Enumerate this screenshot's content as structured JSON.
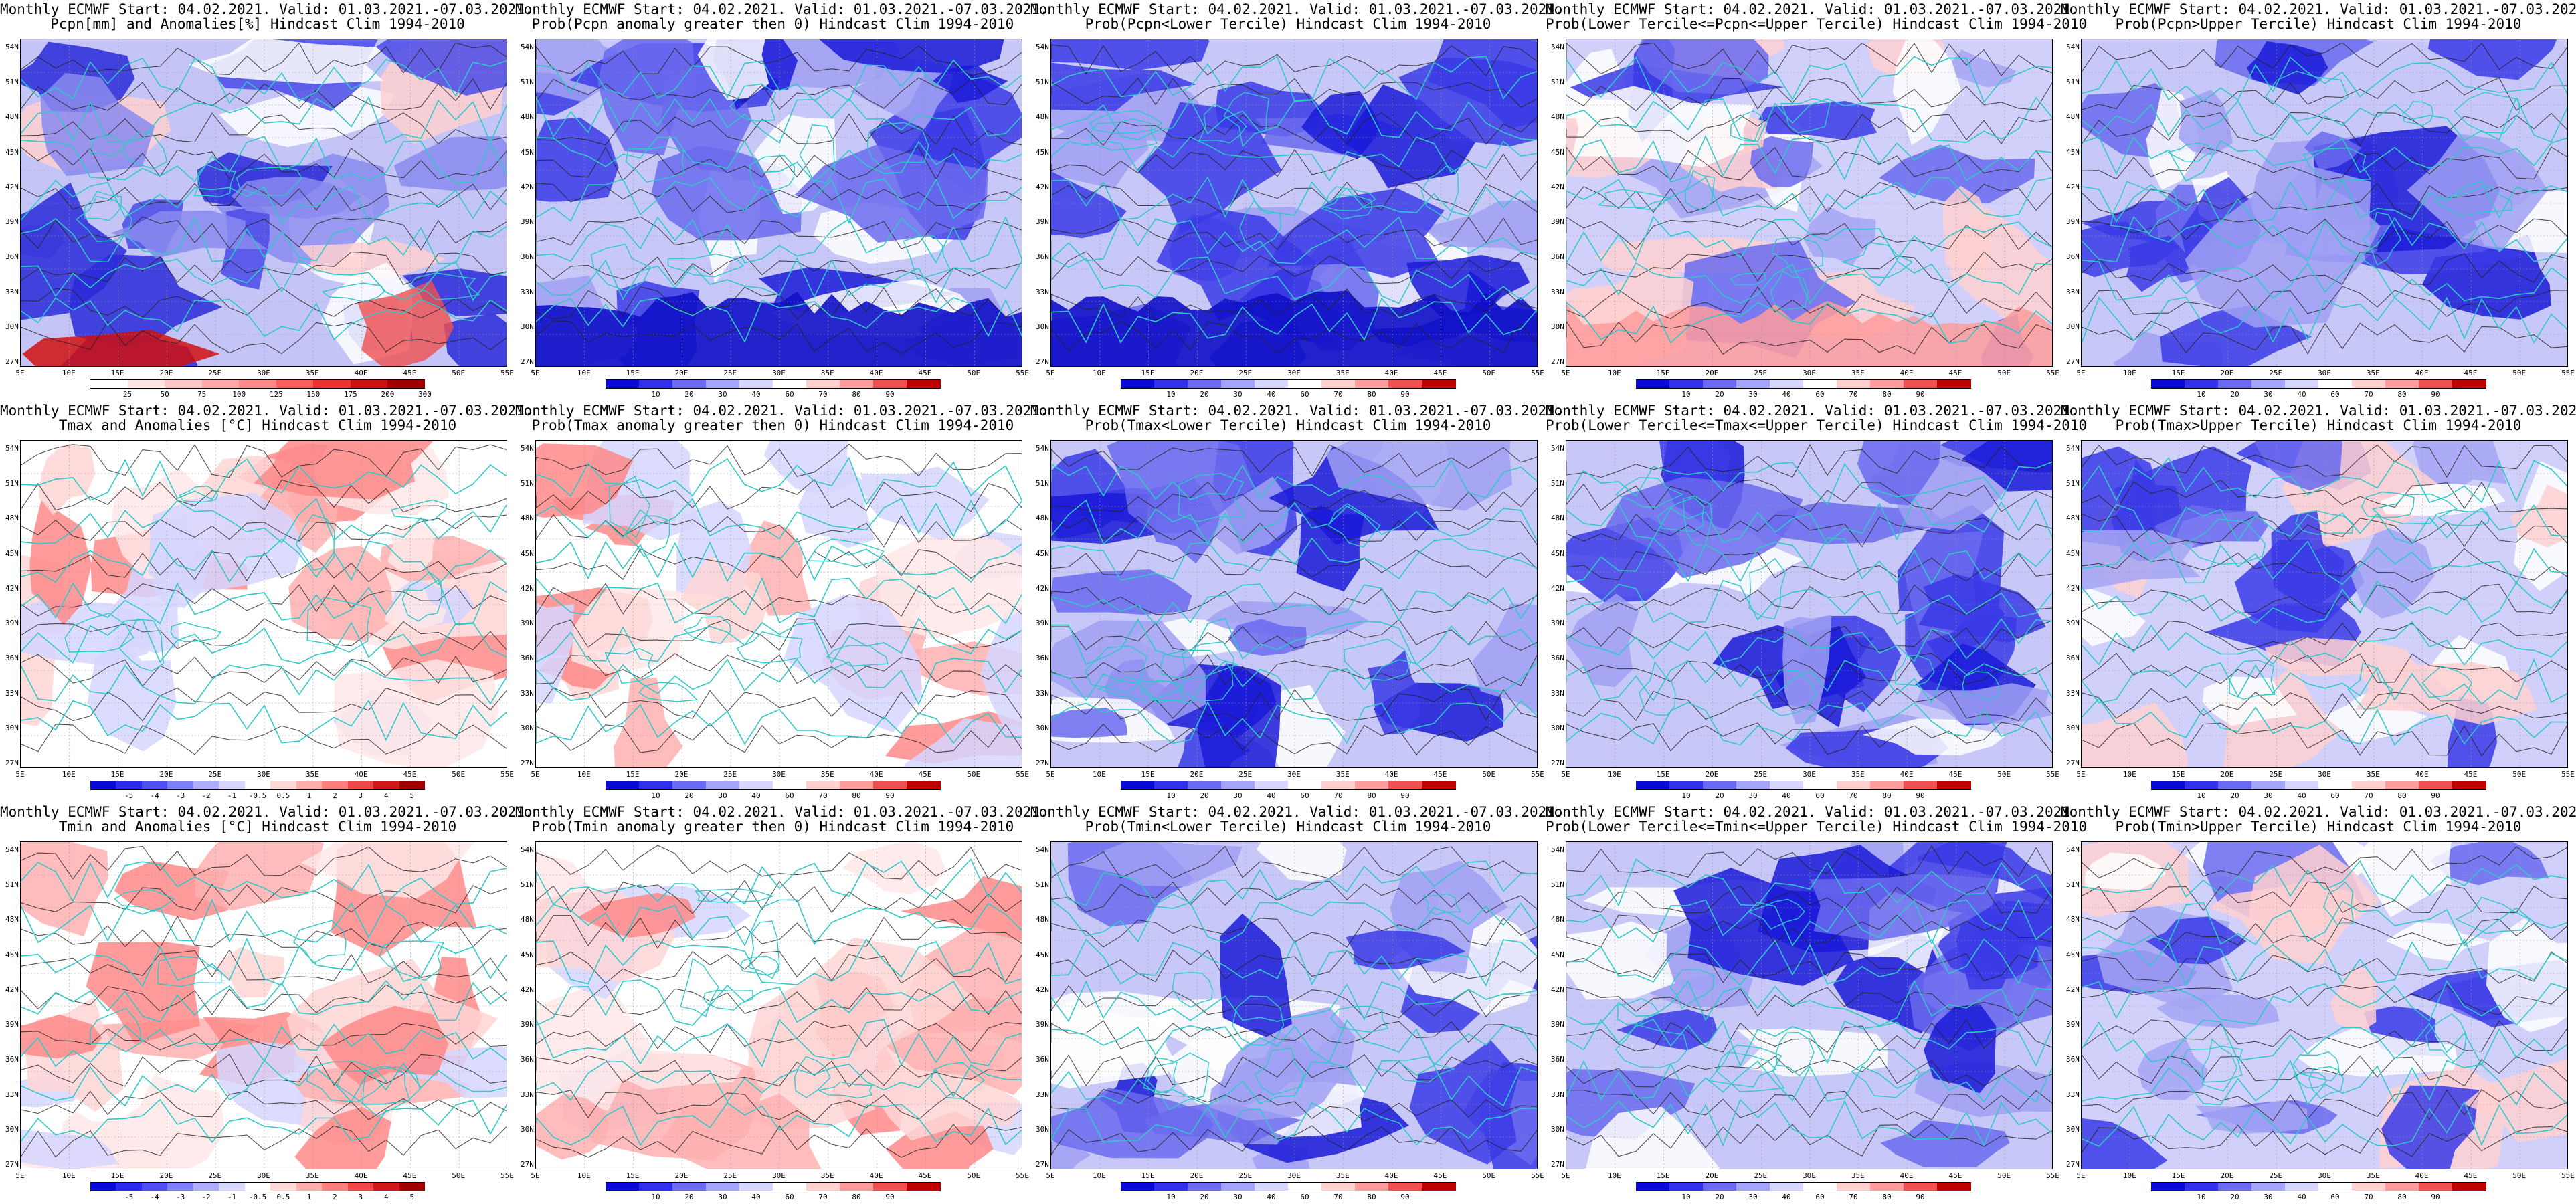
{
  "panels": [
    {
      "title1": "Monthly ECMWF Start: 04.02.2021. Valid: 01.03.2021.-07.03.2021.",
      "title2": "Pcpn[mm] and Anomalies[%] Hindcast Clim 1994-2010",
      "colorbar": "pcpn",
      "pattern": "pcpn"
    },
    {
      "title1": "Monthly ECMWF Start: 04.02.2021. Valid: 01.03.2021.-07.03.2021.",
      "title2": "Prob(Pcpn anomaly greater then 0) Hindcast Clim 1994-2010",
      "colorbar": "prob",
      "pattern": "probblue"
    },
    {
      "title1": "Monthly ECMWF Start: 04.02.2021. Valid: 01.03.2021.-07.03.2021.",
      "title2": "Prob(Pcpn<Lower Tercile) Hindcast Clim 1994-2010",
      "colorbar": "prob",
      "pattern": "probblue"
    },
    {
      "title1": "Monthly ECMWF Start: 04.02.2021. Valid: 01.03.2021.-07.03.2021.",
      "title2": "Prob(Lower Tercile<=Pcpn<=Upper Tercile) Hindcast Clim 1994-2010",
      "colorbar": "prob",
      "pattern": "probmix"
    },
    {
      "title1": "Monthly ECMWF Start: 04.02.2021. Valid: 01.03.2021.-07.03.2021.",
      "title2": "Prob(Pcpn>Upper Tercile) Hindcast Clim 1994-2010",
      "colorbar": "prob",
      "pattern": "probblue"
    },
    {
      "title1": "Monthly ECMWF Start: 04.02.2021. Valid: 01.03.2021.-07.03.2021.",
      "title2": "Tmax and Anomalies [°C] Hindcast Clim 1994-2010",
      "colorbar": "temp",
      "pattern": "warm"
    },
    {
      "title1": "Monthly ECMWF Start: 04.02.2021. Valid: 01.03.2021.-07.03.2021.",
      "title2": "Prob(Tmax anomaly greater then 0) Hindcast Clim 1994-2010",
      "colorbar": "prob",
      "pattern": "warm"
    },
    {
      "title1": "Monthly ECMWF Start: 04.02.2021. Valid: 01.03.2021.-07.03.2021.",
      "title2": "Prob(Tmax<Lower Tercile) Hindcast Clim 1994-2010",
      "colorbar": "prob",
      "pattern": "probblue"
    },
    {
      "title1": "Monthly ECMWF Start: 04.02.2021. Valid: 01.03.2021.-07.03.2021.",
      "title2": "Prob(Lower Tercile<=Tmax<=Upper Tercile) Hindcast Clim 1994-2010",
      "colorbar": "prob",
      "pattern": "probblue"
    },
    {
      "title1": "Monthly ECMWF Start: 04.02.2021. Valid: 01.03.2021.-07.03.2021.",
      "title2": "Prob(Tmax>Upper Tercile) Hindcast Clim 1994-2010",
      "colorbar": "prob",
      "pattern": "probmix"
    },
    {
      "title1": "Monthly ECMWF Start: 04.02.2021. Valid: 01.03.2021.-07.03.2021.",
      "title2": "Tmin and Anomalies [°C] Hindcast Clim 1994-2010",
      "colorbar": "temp",
      "pattern": "warm"
    },
    {
      "title1": "Monthly ECMWF Start: 04.02.2021. Valid: 01.03.2021.-07.03.2021.",
      "title2": "Prob(Tmin anomaly greater then 0) Hindcast Clim 1994-2010",
      "colorbar": "prob",
      "pattern": "warm"
    },
    {
      "title1": "Monthly ECMWF Start: 04.02.2021. Valid: 01.03.2021.-07.03.2021.",
      "title2": "Prob(Tmin<Lower Tercile) Hindcast Clim 1994-2010",
      "colorbar": "prob",
      "pattern": "probblue"
    },
    {
      "title1": "Monthly ECMWF Start: 04.02.2021. Valid: 01.03.2021.-07.03.2021.",
      "title2": "Prob(Lower Tercile<=Tmin<=Upper Tercile) Hindcast Clim 1994-2010",
      "colorbar": "prob",
      "pattern": "probblue"
    },
    {
      "title1": "Monthly ECMWF Start: 04.02.2021. Valid: 01.03.2021.-07.03.2021.",
      "title2": "Prob(Tmin>Upper Tercile) Hindcast Clim 1994-2010",
      "colorbar": "prob",
      "pattern": "probmix"
    }
  ],
  "lat_labels": [
    "54N",
    "51N",
    "48N",
    "45N",
    "42N",
    "39N",
    "36N",
    "33N",
    "30N",
    "27N"
  ],
  "lon_labels": [
    "5E",
    "10E",
    "15E",
    "20E",
    "25E",
    "30E",
    "35E",
    "40E",
    "45E",
    "50E",
    "55E"
  ],
  "colorbars": {
    "pcpn": {
      "labels": [
        "25",
        "50",
        "75",
        "100",
        "125",
        "150",
        "175",
        "200",
        "300"
      ],
      "colors": [
        "#ffffff",
        "#ffe4e4",
        "#ffc8c8",
        "#ffa8a8",
        "#ff8888",
        "#ff5c5c",
        "#f03030",
        "#d01010",
        "#a00000"
      ]
    },
    "prob": {
      "labels": [
        "10",
        "20",
        "30",
        "40",
        "60",
        "70",
        "80",
        "90"
      ],
      "colors": [
        "#0a0ad8",
        "#3030ee",
        "#6a6af4",
        "#a4a4fa",
        "#d6d6ff",
        "#ffffff",
        "#ffd0d0",
        "#ff9c9c",
        "#f05050",
        "#c00000"
      ]
    },
    "temp": {
      "labels": [
        "-5",
        "-4",
        "-3",
        "-2",
        "-1",
        "-0.5",
        "0.5",
        "1",
        "2",
        "3",
        "4",
        "5"
      ],
      "colors": [
        "#0a0ad8",
        "#2a2aee",
        "#5050f4",
        "#7e7ef8",
        "#aeaefc",
        "#d8d8ff",
        "#ffffff",
        "#ffd8d8",
        "#ffaeae",
        "#ff7e7e",
        "#f04848",
        "#d01818",
        "#a00000"
      ]
    }
  },
  "colors": {
    "coast": "#30c8c8",
    "contour": "#222222",
    "frame": "#000000"
  }
}
